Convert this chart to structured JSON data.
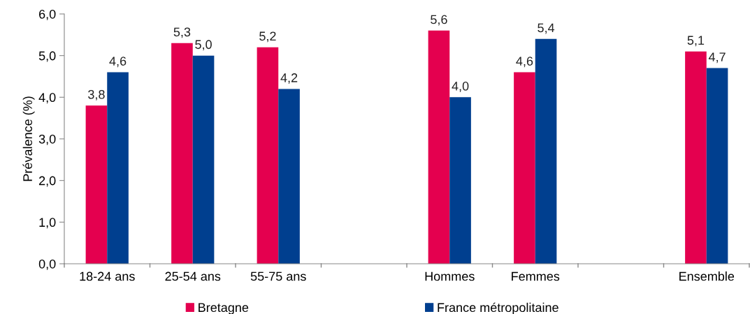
{
  "chart_data": {
    "type": "bar",
    "ylabel": "Prévalence (%)",
    "categories": [
      "18-24 ans",
      "25-54 ans",
      "55-75 ans",
      null,
      "Hommes",
      "Femmes",
      null,
      "Ensemble"
    ],
    "series": [
      {
        "name": "Bretagne",
        "color": "#e4004f",
        "values": [
          3.8,
          5.3,
          5.2,
          null,
          5.6,
          4.6,
          null,
          5.1
        ],
        "value_labels": [
          "3,8",
          "5,3",
          "5,2",
          null,
          "5,6",
          "4,6",
          null,
          "5,1"
        ]
      },
      {
        "name": "France métropolitaine",
        "color": "#003f8f",
        "values": [
          4.6,
          5.0,
          4.2,
          null,
          4.0,
          5.4,
          null,
          4.7
        ],
        "value_labels": [
          "4,6",
          "5,0",
          "4,2",
          null,
          "4,0",
          "5,4",
          null,
          "4,7"
        ]
      }
    ],
    "ylim": [
      0,
      6
    ],
    "yticks": [
      {
        "value": 0,
        "label": "0,0"
      },
      {
        "value": 1,
        "label": "1,0"
      },
      {
        "value": 2,
        "label": "2,0"
      },
      {
        "value": 3,
        "label": "3,0"
      },
      {
        "value": 4,
        "label": "4,0"
      },
      {
        "value": 5,
        "label": "5,0"
      },
      {
        "value": 6,
        "label": "6,0"
      }
    ],
    "grid": false,
    "legend": "bottom"
  }
}
